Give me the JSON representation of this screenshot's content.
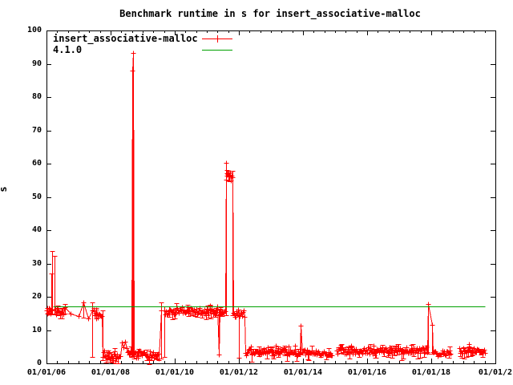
{
  "chart_data": {
    "type": "line",
    "style": "gnuplot-errorlines",
    "title": "Benchmark runtime in s for insert_associative-malloc",
    "ylabel": "s",
    "grid": false,
    "legend_position": "top-left-inside",
    "background": "#ffffff",
    "border_color": "#000000",
    "x_axis": {
      "range": [
        2006,
        2020
      ],
      "tick_years": [
        2006,
        2008,
        2010,
        2012,
        2014,
        2016,
        2018,
        2020
      ],
      "tick_labels": [
        "01/01/06",
        "01/01/08",
        "01/01/10",
        "01/01/12",
        "01/01/14",
        "01/01/16",
        "01/01/18",
        "01/01/2"
      ],
      "minor_ticks_per_label_interval": 6
    },
    "y_axis": {
      "range": [
        0,
        100
      ],
      "tick_step": 10,
      "tick_labels": [
        "0",
        "10",
        "20",
        "30",
        "40",
        "50",
        "60",
        "70",
        "80",
        "90",
        "100"
      ]
    },
    "series": [
      {
        "name": "insert_associative-malloc",
        "color": "#ff0000",
        "marker": "plus",
        "segments": [
          {
            "k": "c",
            "x0": 2006.0,
            "x1": 2006.12,
            "lo": 14.6,
            "hi": 16.9,
            "n": 8,
            "bf": 0.3
          },
          {
            "k": "p",
            "x": 2006.14,
            "y": 16.2,
            "bar": [
              14.8,
              27.0
            ]
          },
          {
            "k": "p",
            "x": 2006.17,
            "y": 16.0,
            "bar": [
              15.0,
              33.7
            ]
          },
          {
            "k": "p",
            "x": 2006.24,
            "y": 15.8,
            "bar": [
              15.0,
              32.2
            ]
          },
          {
            "k": "c",
            "x0": 2006.27,
            "x1": 2006.57,
            "lo": 14.6,
            "hi": 17.1,
            "n": 14,
            "bf": 0.35
          },
          {
            "k": "p",
            "x": 2006.75,
            "y": 14.9
          },
          {
            "k": "p",
            "x": 2007.0,
            "y": 14.2
          },
          {
            "k": "p",
            "x": 2007.15,
            "y": 18.3,
            "bar": [
              13.8,
              18.3
            ]
          },
          {
            "k": "p",
            "x": 2007.3,
            "y": 13.6
          },
          {
            "k": "p",
            "x": 2007.42,
            "y": 16.0,
            "bar": [
              1.9,
              18.2
            ]
          },
          {
            "k": "c",
            "x0": 2007.47,
            "x1": 2007.72,
            "lo": 13.3,
            "hi": 16.4,
            "n": 12,
            "bf": 0.4
          },
          {
            "k": "p",
            "x": 2007.75,
            "y": 2.0,
            "bar": [
              0.9,
              16.0
            ]
          },
          {
            "k": "c",
            "x0": 2007.78,
            "x1": 2008.3,
            "lo": 0.9,
            "hi": 3.9,
            "n": 24,
            "bf": 0.3
          },
          {
            "k": "p",
            "x": 2008.34,
            "y": 6.3
          },
          {
            "k": "p",
            "x": 2008.4,
            "y": 4.7
          },
          {
            "k": "p",
            "x": 2008.46,
            "y": 6.6
          },
          {
            "k": "c",
            "x0": 2008.5,
            "x1": 2008.64,
            "lo": 2.0,
            "hi": 4.8,
            "n": 7,
            "bf": 0.3
          },
          {
            "k": "p",
            "x": 2008.67,
            "y": 87.9,
            "bar": [
              2.2,
              88.0
            ]
          },
          {
            "k": "p",
            "x": 2008.69,
            "y": 93.2,
            "bar": [
              2.2,
              93.2
            ]
          },
          {
            "k": "c",
            "x0": 2008.72,
            "x1": 2009.5,
            "lo": 1.2,
            "hi": 3.8,
            "n": 34,
            "bf": 0.35
          },
          {
            "k": "p",
            "x": 2009.58,
            "y": 16.0,
            "bar": [
              1.5,
              18.3
            ]
          },
          {
            "k": "p",
            "x": 2009.67,
            "y": 15.8,
            "bar": [
              2.0,
              17.2
            ]
          },
          {
            "k": "c",
            "x0": 2009.7,
            "x1": 2011.05,
            "lo": 14.6,
            "hi": 16.8,
            "n": 56,
            "bf": 0.3
          },
          {
            "k": "p",
            "x": 2011.1,
            "y": 17.3,
            "bar": [
              15.0,
              17.5
            ]
          },
          {
            "k": "c",
            "x0": 2011.12,
            "x1": 2011.3,
            "lo": 14.8,
            "hi": 16.6,
            "n": 8,
            "bf": 0.3
          },
          {
            "k": "p",
            "x": 2011.33,
            "y": 17.2
          },
          {
            "k": "p",
            "x": 2011.38,
            "y": 2.7,
            "bar": [
              2.7,
              16.2
            ]
          },
          {
            "k": "c",
            "x0": 2011.41,
            "x1": 2011.58,
            "lo": 14.9,
            "hi": 16.4,
            "n": 8,
            "bf": 0.3
          },
          {
            "k": "p",
            "x": 2011.6,
            "y": 60.2,
            "bar": [
              14.5,
              60.2
            ]
          },
          {
            "k": "c",
            "x0": 2011.61,
            "x1": 2011.77,
            "lo": 54.8,
            "hi": 57.6,
            "n": 10,
            "bf": 0.4
          },
          {
            "k": "p",
            "x": 2011.79,
            "y": 55.8,
            "bar": [
              14.5,
              57.8
            ]
          },
          {
            "k": "c",
            "x0": 2011.82,
            "x1": 2011.98,
            "lo": 13.9,
            "hi": 16.4,
            "n": 8,
            "bf": 0.35
          },
          {
            "k": "p",
            "x": 2012.0,
            "y": 14.5,
            "bar": [
              1.8,
              16.2
            ]
          },
          {
            "k": "c",
            "x0": 2012.02,
            "x1": 2012.17,
            "lo": 14.0,
            "hi": 16.3,
            "n": 7,
            "bf": 0.35
          },
          {
            "k": "p",
            "x": 2012.2,
            "y": 3.2
          },
          {
            "k": "c",
            "x0": 2012.22,
            "x1": 2013.9,
            "lo": 2.2,
            "hi": 4.3,
            "n": 70,
            "bf": 0.3,
            "ups": [
              [
                2012.38,
                5.0
              ],
              [
                2012.9,
                4.9
              ],
              [
                2013.15,
                5.2
              ],
              [
                2013.55,
                5.0
              ],
              [
                2013.75,
                5.3
              ]
            ]
          },
          {
            "k": "p",
            "x": 2013.93,
            "y": 11.3,
            "bar": [
              2.6,
              11.3
            ]
          },
          {
            "k": "c",
            "x0": 2013.97,
            "x1": 2014.91,
            "lo": 2.3,
            "hi": 4.1,
            "n": 40,
            "bf": 0.3
          },
          {
            "k": "c",
            "x0": 2015.06,
            "x1": 2017.87,
            "lo": 2.8,
            "hi": 4.9,
            "n": 115,
            "bf": 0.3,
            "gap": true,
            "ups": [
              [
                2015.5,
                5.3
              ],
              [
                2016.2,
                5.2
              ],
              [
                2016.9,
                5.1
              ]
            ]
          },
          {
            "k": "p",
            "x": 2017.91,
            "y": 17.8,
            "bar": [
              2.9,
              17.8
            ]
          },
          {
            "k": "p",
            "x": 2018.02,
            "y": 11.5,
            "bar": [
              2.9,
              11.5
            ]
          },
          {
            "k": "c",
            "x0": 2018.05,
            "x1": 2018.6,
            "lo": 2.2,
            "hi": 3.9,
            "n": 22,
            "bf": 0.3
          },
          {
            "k": "c",
            "x0": 2018.88,
            "x1": 2019.67,
            "lo": 2.9,
            "hi": 4.7,
            "n": 34,
            "bf": 0.3,
            "gap": true,
            "ups": [
              [
                2019.18,
                5.8
              ]
            ]
          }
        ]
      },
      {
        "name": "4.1.0",
        "color": "#00a000",
        "style": "hline",
        "y": 17.2,
        "x_range": [
          2006.2,
          2019.68
        ]
      }
    ]
  }
}
